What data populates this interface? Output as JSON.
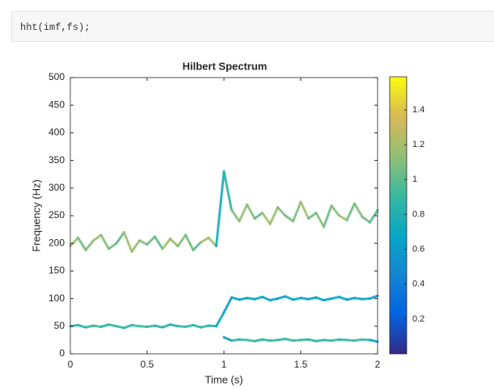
{
  "code": "hht(imf,fs);",
  "chart_data": {
    "type": "hilbert",
    "title": "Hilbert Spectrum",
    "xlabel": "Time (s)",
    "ylabel": "Frequency (Hz)",
    "xlim": [
      0,
      2
    ],
    "xticks": [
      0,
      0.5,
      1,
      1.5,
      2
    ],
    "ylim": [
      0,
      500
    ],
    "yticks": [
      0,
      50,
      100,
      150,
      200,
      250,
      300,
      350,
      400,
      450,
      500
    ],
    "clim": [
      0,
      1.59
    ],
    "cticks": [
      0.2,
      0.4,
      0.6,
      0.8,
      1,
      1.2,
      1.4
    ],
    "colormap": [
      "#352a87",
      "#0363e1",
      "#1485d4",
      "#06a7c6",
      "#38b99e",
      "#92bf73",
      "#d9ba56",
      "#f9fb0e"
    ],
    "x": [
      0,
      0.05,
      0.1,
      0.15,
      0.2,
      0.25,
      0.3,
      0.35,
      0.4,
      0.45,
      0.5,
      0.55,
      0.6,
      0.65,
      0.7,
      0.75,
      0.8,
      0.85,
      0.9,
      0.95,
      1,
      1.05,
      1.1,
      1.15,
      1.2,
      1.25,
      1.3,
      1.35,
      1.4,
      1.45,
      1.5,
      1.55,
      1.6,
      1.65,
      1.7,
      1.75,
      1.8,
      1.85,
      1.9,
      1.95,
      2
    ],
    "series": [
      {
        "values": [
          195,
          210,
          188,
          205,
          215,
          190,
          200,
          220,
          185,
          205,
          198,
          212,
          190,
          208,
          195,
          215,
          188,
          202,
          210,
          195,
          330,
          260,
          240,
          270,
          245,
          255,
          235,
          265,
          250,
          240,
          275,
          245,
          255,
          230,
          268,
          250,
          242,
          272,
          248,
          238,
          260
        ],
        "energy": [
          1.1,
          1.2,
          0.9,
          1.3,
          1.0,
          1.2,
          0.9,
          1.1,
          1.3,
          1.0,
          1.2,
          0.9,
          1.1,
          1.3,
          1.0,
          1.2,
          0.9,
          1.1,
          1.3,
          1.0,
          0.5,
          1.2,
          1.0,
          1.3,
          0.9,
          1.1,
          1.3,
          1.0,
          1.2,
          0.9,
          1.3,
          1.1,
          1.0,
          1.2,
          0.9,
          1.3,
          1.1,
          1.0,
          1.2,
          0.9,
          1.1
        ]
      },
      {
        "values": [
          50,
          52,
          48,
          51,
          49,
          53,
          50,
          47,
          52,
          50,
          49,
          51,
          48,
          53,
          50,
          49,
          52,
          48,
          51,
          50,
          75,
          102,
          98,
          101,
          99,
          103,
          97,
          100,
          104,
          98,
          101,
          99,
          102,
          97,
          100,
          103,
          98,
          101,
          99,
          100,
          105
        ],
        "energy": [
          0.8,
          0.9,
          0.75,
          1.0,
          0.85,
          0.8,
          0.95,
          0.8,
          0.9,
          0.85,
          1.0,
          0.8,
          0.9,
          0.75,
          0.85,
          0.95,
          0.8,
          0.9,
          0.85,
          0.8,
          0.6,
          0.65,
          0.7,
          0.6,
          0.75,
          0.65,
          0.7,
          0.6,
          0.65,
          0.75,
          0.6,
          0.7,
          0.65,
          0.6,
          0.7,
          0.75,
          0.65,
          0.6,
          0.7,
          0.65,
          0.55
        ]
      },
      {
        "values": [
          null,
          null,
          null,
          null,
          null,
          null,
          null,
          null,
          null,
          null,
          null,
          null,
          null,
          null,
          null,
          null,
          null,
          null,
          null,
          null,
          30,
          24,
          26,
          25,
          23,
          26,
          24,
          25,
          27,
          24,
          25,
          26,
          23,
          25,
          24,
          26,
          25,
          24,
          26,
          25,
          22
        ],
        "energy": [
          null,
          null,
          null,
          null,
          null,
          null,
          null,
          null,
          null,
          null,
          null,
          null,
          null,
          null,
          null,
          null,
          null,
          null,
          null,
          null,
          0.3,
          0.9,
          0.85,
          0.95,
          0.9,
          0.8,
          0.95,
          0.9,
          0.85,
          0.9,
          0.95,
          0.85,
          0.9,
          0.8,
          0.95,
          0.9,
          0.85,
          0.9,
          0.95,
          0.85,
          0.4
        ]
      }
    ]
  }
}
